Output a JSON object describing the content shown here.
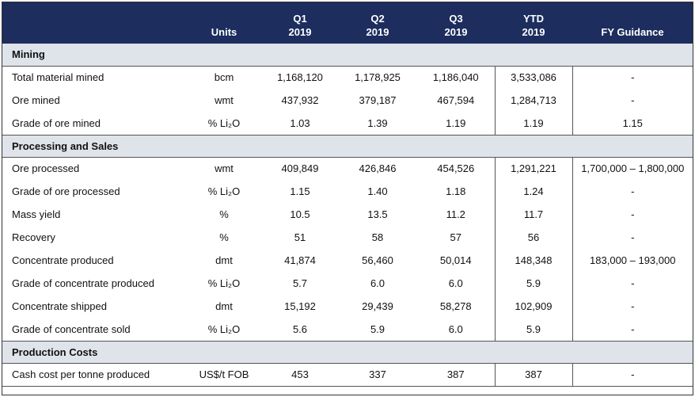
{
  "headers": {
    "label": "",
    "units": "Units",
    "q1": "Q1\n2019",
    "q2": "Q2\n2019",
    "q3": "Q3\n2019",
    "ytd": "YTD\n2019",
    "guidance": "FY Guidance"
  },
  "sections": [
    {
      "title": "Mining",
      "rows": [
        {
          "label": "Total material mined",
          "units": "bcm",
          "q1": "1,168,120",
          "q2": "1,178,925",
          "q3": "1,186,040",
          "ytd": "3,533,086",
          "guidance": "-"
        },
        {
          "label": "Ore mined",
          "units": "wmt",
          "q1": "437,932",
          "q2": "379,187",
          "q3": "467,594",
          "ytd": "1,284,713",
          "guidance": "-"
        },
        {
          "label": "Grade of ore mined",
          "units": "% Li₂O",
          "q1": "1.03",
          "q2": "1.39",
          "q3": "1.19",
          "ytd": "1.19",
          "guidance": "1.15"
        }
      ]
    },
    {
      "title": "Processing and Sales",
      "rows": [
        {
          "label": "Ore processed",
          "units": "wmt",
          "q1": "409,849",
          "q2": "426,846",
          "q3": "454,526",
          "ytd": "1,291,221",
          "guidance": "1,700,000 – 1,800,000"
        },
        {
          "label": "Grade of ore processed",
          "units": "% Li₂O",
          "q1": "1.15",
          "q2": "1.40",
          "q3": "1.18",
          "ytd": "1.24",
          "guidance": "-"
        },
        {
          "label": "Mass yield",
          "units": "%",
          "q1": "10.5",
          "q2": "13.5",
          "q3": "11.2",
          "ytd": "11.7",
          "guidance": "-"
        },
        {
          "label": "Recovery",
          "units": "%",
          "q1": "51",
          "q2": "58",
          "q3": "57",
          "ytd": "56",
          "guidance": "-"
        },
        {
          "label": "Concentrate produced",
          "units": "dmt",
          "q1": "41,874",
          "q2": "56,460",
          "q3": "50,014",
          "ytd": "148,348",
          "guidance": "183,000 – 193,000"
        },
        {
          "label": "Grade of concentrate produced",
          "units": "% Li₂O",
          "q1": "5.7",
          "q2": "6.0",
          "q3": "6.0",
          "ytd": "5.9",
          "guidance": "-"
        },
        {
          "label": "Concentrate shipped",
          "units": "dmt",
          "q1": "15,192",
          "q2": "29,439",
          "q3": "58,278",
          "ytd": "102,909",
          "guidance": "-"
        },
        {
          "label": "Grade of concentrate sold",
          "units": "% Li₂O",
          "q1": "5.6",
          "q2": "5.9",
          "q3": "6.0",
          "ytd": "5.9",
          "guidance": "-"
        }
      ]
    },
    {
      "title": "Production Costs",
      "rows": [
        {
          "label": "Cash cost per tonne produced",
          "units": "US$/t FOB",
          "q1": "453",
          "q2": "337",
          "q3": "387",
          "ytd": "387",
          "guidance": "-"
        }
      ]
    }
  ]
}
